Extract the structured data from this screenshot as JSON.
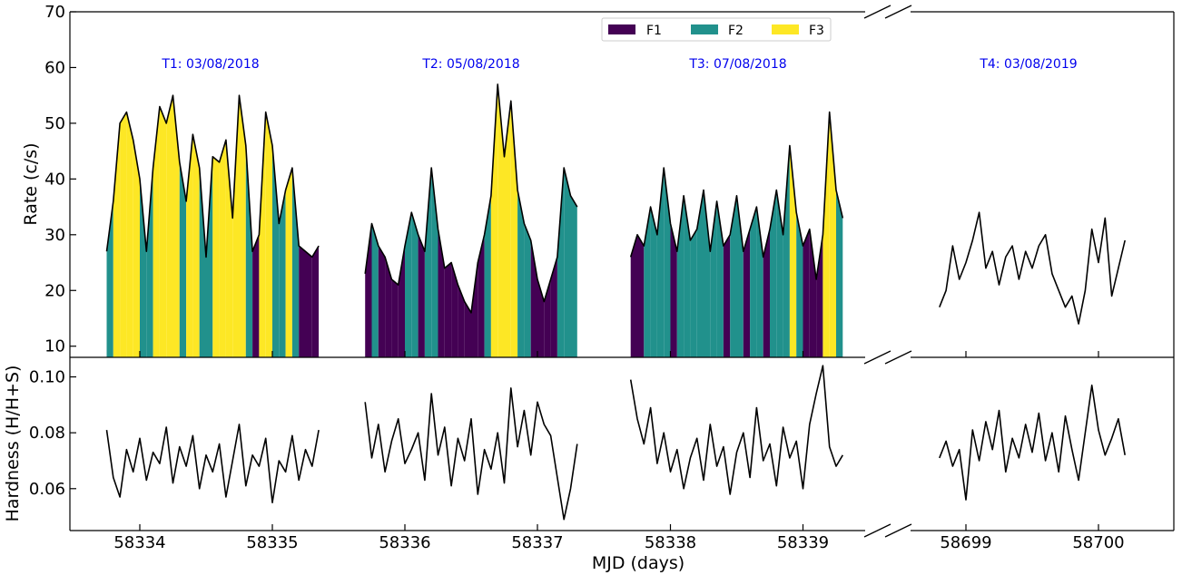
{
  "chart_data": {
    "type": "line",
    "xlabel": "MJD (days)",
    "colors": {
      "F1": "#440154",
      "F2": "#21918c",
      "F3": "#fde725",
      "line": "#000000",
      "annotation": "#0000ee"
    },
    "legend": {
      "position": "top-center",
      "entries": [
        "F1",
        "F2",
        "F3"
      ]
    },
    "segments": [
      {
        "label": "T1: 03/08/2018",
        "x_range": [
          58333.75,
          58335.35
        ]
      },
      {
        "label": "T2: 05/08/2018",
        "x_range": [
          58335.7,
          58337.3
        ]
      },
      {
        "label": "T3: 07/08/2018",
        "x_range": [
          58337.7,
          58339.3
        ]
      },
      {
        "label": "T4: 03/08/2019",
        "x_range": [
          58698.8,
          58700.2
        ]
      }
    ],
    "panels": [
      {
        "name": "rate",
        "ylabel": "Rate (c/s)",
        "ylim": [
          8,
          70
        ],
        "yticks": [
          "10",
          "20",
          "30",
          "40",
          "50",
          "60",
          "70"
        ],
        "flare_fill": "under the rate curve, coloured by flare class F1 (<30 c/s), F2 (30-40 c/s), F3 (>40 c/s); no fill in T4",
        "series": [
          {
            "segment": 0,
            "x": [
              58333.75,
              58333.8,
              58333.85,
              58333.9,
              58333.95,
              58334.0,
              58334.05,
              58334.1,
              58334.15,
              58334.2,
              58334.25,
              58334.3,
              58334.35,
              58334.4,
              58334.45,
              58334.5,
              58334.55,
              58334.6,
              58334.65,
              58334.7,
              58334.75,
              58334.8,
              58334.85,
              58334.9,
              58334.95,
              58335.0,
              58335.05,
              58335.1,
              58335.15,
              58335.2,
              58335.25,
              58335.3,
              58335.35
            ],
            "y": [
              27,
              36,
              50,
              52,
              47,
              40,
              27,
              42,
              53,
              50,
              55,
              43,
              36,
              48,
              42,
              26,
              44,
              43,
              47,
              33,
              55,
              46,
              27,
              30,
              52,
              46,
              32,
              38,
              42,
              28,
              27,
              26,
              28
            ]
          },
          {
            "segment": 1,
            "x": [
              58335.7,
              58335.75,
              58335.8,
              58335.85,
              58335.9,
              58335.95,
              58336.0,
              58336.05,
              58336.1,
              58336.15,
              58336.2,
              58336.25,
              58336.3,
              58336.35,
              58336.4,
              58336.45,
              58336.5,
              58336.55,
              58336.6,
              58336.65,
              58336.7,
              58336.75,
              58336.8,
              58336.85,
              58336.9,
              58336.95,
              58337.0,
              58337.05,
              58337.1,
              58337.15,
              58337.2,
              58337.25,
              58337.3
            ],
            "y": [
              23,
              32,
              28,
              26,
              22,
              21,
              28,
              34,
              30,
              27,
              42,
              31,
              24,
              25,
              21,
              18,
              16,
              25,
              30,
              37,
              57,
              44,
              54,
              38,
              32,
              29,
              22,
              18,
              22,
              26,
              42,
              37,
              35
            ]
          },
          {
            "segment": 2,
            "x": [
              58337.7,
              58337.75,
              58337.8,
              58337.85,
              58337.9,
              58337.95,
              58338.0,
              58338.05,
              58338.1,
              58338.15,
              58338.2,
              58338.25,
              58338.3,
              58338.35,
              58338.4,
              58338.45,
              58338.5,
              58338.55,
              58338.6,
              58338.65,
              58338.7,
              58338.75,
              58338.8,
              58338.85,
              58338.9,
              58338.95,
              58339.0,
              58339.05,
              58339.1,
              58339.15,
              58339.2,
              58339.25,
              58339.3
            ],
            "y": [
              26,
              30,
              28,
              35,
              30,
              42,
              32,
              27,
              37,
              29,
              31,
              38,
              27,
              36,
              28,
              30,
              37,
              27,
              31,
              35,
              26,
              31,
              38,
              30,
              46,
              34,
              28,
              31,
              22,
              30,
              52,
              38,
              33
            ]
          },
          {
            "segment": 3,
            "x": [
              58698.8,
              58698.85,
              58698.9,
              58698.95,
              58699.0,
              58699.05,
              58699.1,
              58699.15,
              58699.2,
              58699.25,
              58699.3,
              58699.35,
              58699.4,
              58699.45,
              58699.5,
              58699.55,
              58699.6,
              58699.65,
              58699.7,
              58699.75,
              58699.8,
              58699.85,
              58699.9,
              58699.95,
              58700.0,
              58700.05,
              58700.1,
              58700.15,
              58700.2
            ],
            "y": [
              17,
              20,
              28,
              22,
              25,
              29,
              34,
              24,
              27,
              21,
              26,
              28,
              22,
              27,
              24,
              28,
              30,
              23,
              20,
              17,
              19,
              14,
              20,
              31,
              25,
              33,
              19,
              24,
              29
            ]
          }
        ]
      },
      {
        "name": "hardness",
        "ylabel": "Hardness (H/H+S)",
        "ylim": [
          0.045,
          0.107
        ],
        "yticks": [
          "0.06",
          "0.08",
          "0.10"
        ],
        "series": [
          {
            "segment": 0,
            "x": [
              58333.75,
              58333.8,
              58333.85,
              58333.9,
              58333.95,
              58334.0,
              58334.05,
              58334.1,
              58334.15,
              58334.2,
              58334.25,
              58334.3,
              58334.35,
              58334.4,
              58334.45,
              58334.5,
              58334.55,
              58334.6,
              58334.65,
              58334.7,
              58334.75,
              58334.8,
              58334.85,
              58334.9,
              58334.95,
              58335.0,
              58335.05,
              58335.1,
              58335.15,
              58335.2,
              58335.25,
              58335.3,
              58335.35
            ],
            "y": [
              0.081,
              0.064,
              0.057,
              0.074,
              0.066,
              0.078,
              0.063,
              0.073,
              0.069,
              0.082,
              0.062,
              0.075,
              0.068,
              0.079,
              0.06,
              0.072,
              0.066,
              0.076,
              0.057,
              0.07,
              0.083,
              0.061,
              0.072,
              0.068,
              0.078,
              0.055,
              0.07,
              0.066,
              0.079,
              0.063,
              0.074,
              0.068,
              0.081
            ]
          },
          {
            "segment": 1,
            "x": [
              58335.7,
              58335.75,
              58335.8,
              58335.85,
              58335.9,
              58335.95,
              58336.0,
              58336.05,
              58336.1,
              58336.15,
              58336.2,
              58336.25,
              58336.3,
              58336.35,
              58336.4,
              58336.45,
              58336.5,
              58336.55,
              58336.6,
              58336.65,
              58336.7,
              58336.75,
              58336.8,
              58336.85,
              58336.9,
              58336.95,
              58337.0,
              58337.05,
              58337.1,
              58337.15,
              58337.2,
              58337.25,
              58337.3
            ],
            "y": [
              0.091,
              0.071,
              0.083,
              0.066,
              0.077,
              0.085,
              0.069,
              0.074,
              0.08,
              0.063,
              0.094,
              0.072,
              0.082,
              0.061,
              0.078,
              0.07,
              0.085,
              0.058,
              0.074,
              0.067,
              0.08,
              0.062,
              0.096,
              0.075,
              0.088,
              0.072,
              0.091,
              0.083,
              0.079,
              0.064,
              0.049,
              0.06,
              0.076
            ]
          },
          {
            "segment": 2,
            "x": [
              58337.7,
              58337.75,
              58337.8,
              58337.85,
              58337.9,
              58337.95,
              58338.0,
              58338.05,
              58338.1,
              58338.15,
              58338.2,
              58338.25,
              58338.3,
              58338.35,
              58338.4,
              58338.45,
              58338.5,
              58338.55,
              58338.6,
              58338.65,
              58338.7,
              58338.75,
              58338.8,
              58338.85,
              58338.9,
              58338.95,
              58339.0,
              58339.05,
              58339.1,
              58339.15,
              58339.2,
              58339.25,
              58339.3
            ],
            "y": [
              0.099,
              0.085,
              0.076,
              0.089,
              0.069,
              0.08,
              0.066,
              0.074,
              0.06,
              0.071,
              0.078,
              0.063,
              0.083,
              0.068,
              0.075,
              0.058,
              0.073,
              0.08,
              0.064,
              0.089,
              0.07,
              0.076,
              0.061,
              0.082,
              0.071,
              0.077,
              0.06,
              0.083,
              0.094,
              0.104,
              0.075,
              0.068,
              0.072
            ]
          },
          {
            "segment": 3,
            "x": [
              58698.8,
              58698.85,
              58698.9,
              58698.95,
              58699.0,
              58699.05,
              58699.1,
              58699.15,
              58699.2,
              58699.25,
              58699.3,
              58699.35,
              58699.4,
              58699.45,
              58699.5,
              58699.55,
              58699.6,
              58699.65,
              58699.7,
              58699.75,
              58699.8,
              58699.85,
              58699.9,
              58699.95,
              58700.0,
              58700.05,
              58700.1,
              58700.15,
              58700.2
            ],
            "y": [
              0.071,
              0.077,
              0.068,
              0.074,
              0.056,
              0.081,
              0.07,
              0.084,
              0.074,
              0.088,
              0.066,
              0.078,
              0.071,
              0.083,
              0.073,
              0.087,
              0.07,
              0.08,
              0.066,
              0.086,
              0.074,
              0.063,
              0.08,
              0.097,
              0.081,
              0.072,
              0.078,
              0.085,
              0.072
            ]
          }
        ]
      }
    ],
    "xticks": [
      {
        "segment": 0,
        "value": 58334,
        "label": "58334"
      },
      {
        "segment": 0,
        "value": 58335,
        "label": "58335"
      },
      {
        "segment": 1,
        "value": 58336,
        "label": "58336"
      },
      {
        "segment": 1,
        "value": 58337,
        "label": "58337"
      },
      {
        "segment": 2,
        "value": 58338,
        "label": "58338"
      },
      {
        "segment": 2,
        "value": 58339,
        "label": "58339"
      },
      {
        "segment": 3,
        "value": 58699,
        "label": "58699"
      },
      {
        "segment": 3,
        "value": 58700,
        "label": "58700"
      }
    ],
    "axis_break": "between 58339.3 and 58698.8",
    "grid": false
  }
}
